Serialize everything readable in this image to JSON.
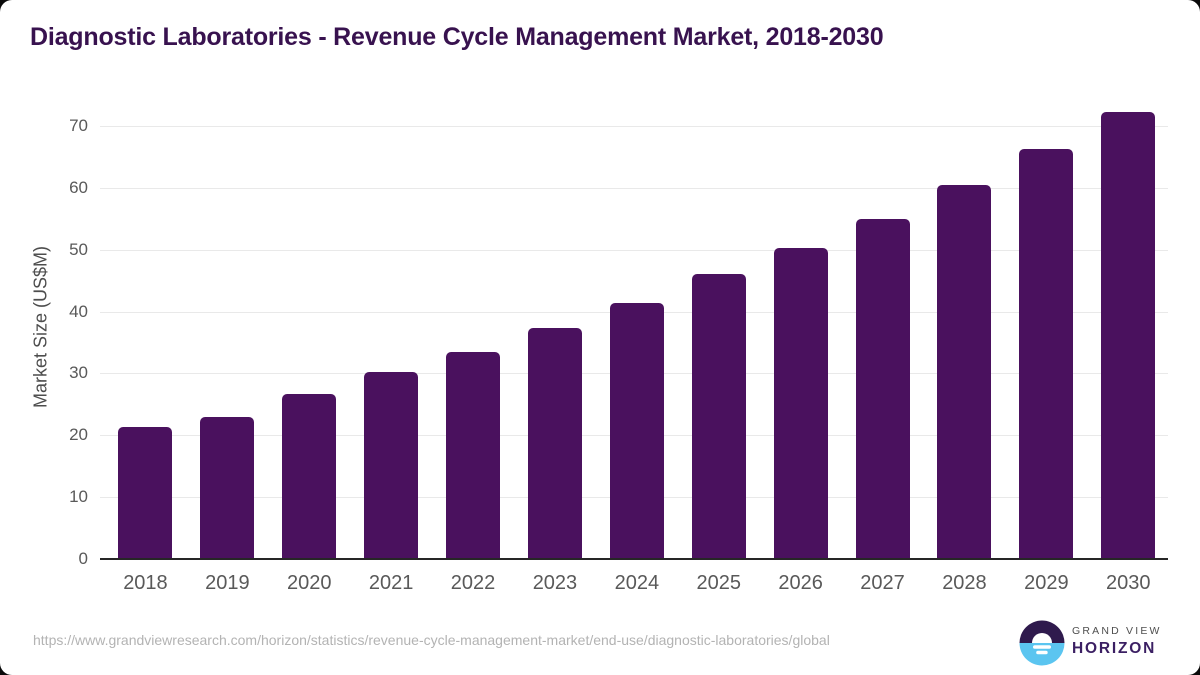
{
  "chart_data": {
    "type": "bar",
    "title": "Diagnostic Laboratories - Revenue Cycle Management Market, 2018-2030",
    "categories": [
      "2018",
      "2019",
      "2020",
      "2021",
      "2022",
      "2023",
      "2024",
      "2025",
      "2026",
      "2027",
      "2028",
      "2029",
      "2030"
    ],
    "values": [
      21.3,
      23.0,
      26.7,
      30.3,
      33.5,
      37.3,
      41.4,
      46.0,
      50.3,
      55.0,
      60.4,
      66.2,
      72.2
    ],
    "xlabel": "",
    "ylabel": "Market Size (US$M)",
    "ylim": [
      0,
      75
    ],
    "yticks": [
      0,
      10,
      20,
      30,
      40,
      50,
      60,
      70
    ],
    "grid": "horizontal",
    "legend_position": "none"
  },
  "footer": {
    "source_url": "https://www.grandviewresearch.com/horizon/statistics/revenue-cycle-management-market/end-use/diagnostic-laboratories/global",
    "logo": {
      "line1": "GRAND VIEW",
      "line2": "HORIZON"
    }
  },
  "colors": {
    "title-color": "#38124f",
    "bar-color": "#4a115e",
    "axis-text-color": "#595959",
    "ylabel-color": "#4d4d4d",
    "grid-color": "#e9e9e9",
    "axis-line-color": "#262626",
    "url-color": "#b3b3b3",
    "logo-dark-color": "#2f1a4d",
    "logo-blue-color": "#5bc5f0",
    "logo-purple-color": "#3b1f63",
    "logo-gray-color": "#4f4f4f"
  }
}
